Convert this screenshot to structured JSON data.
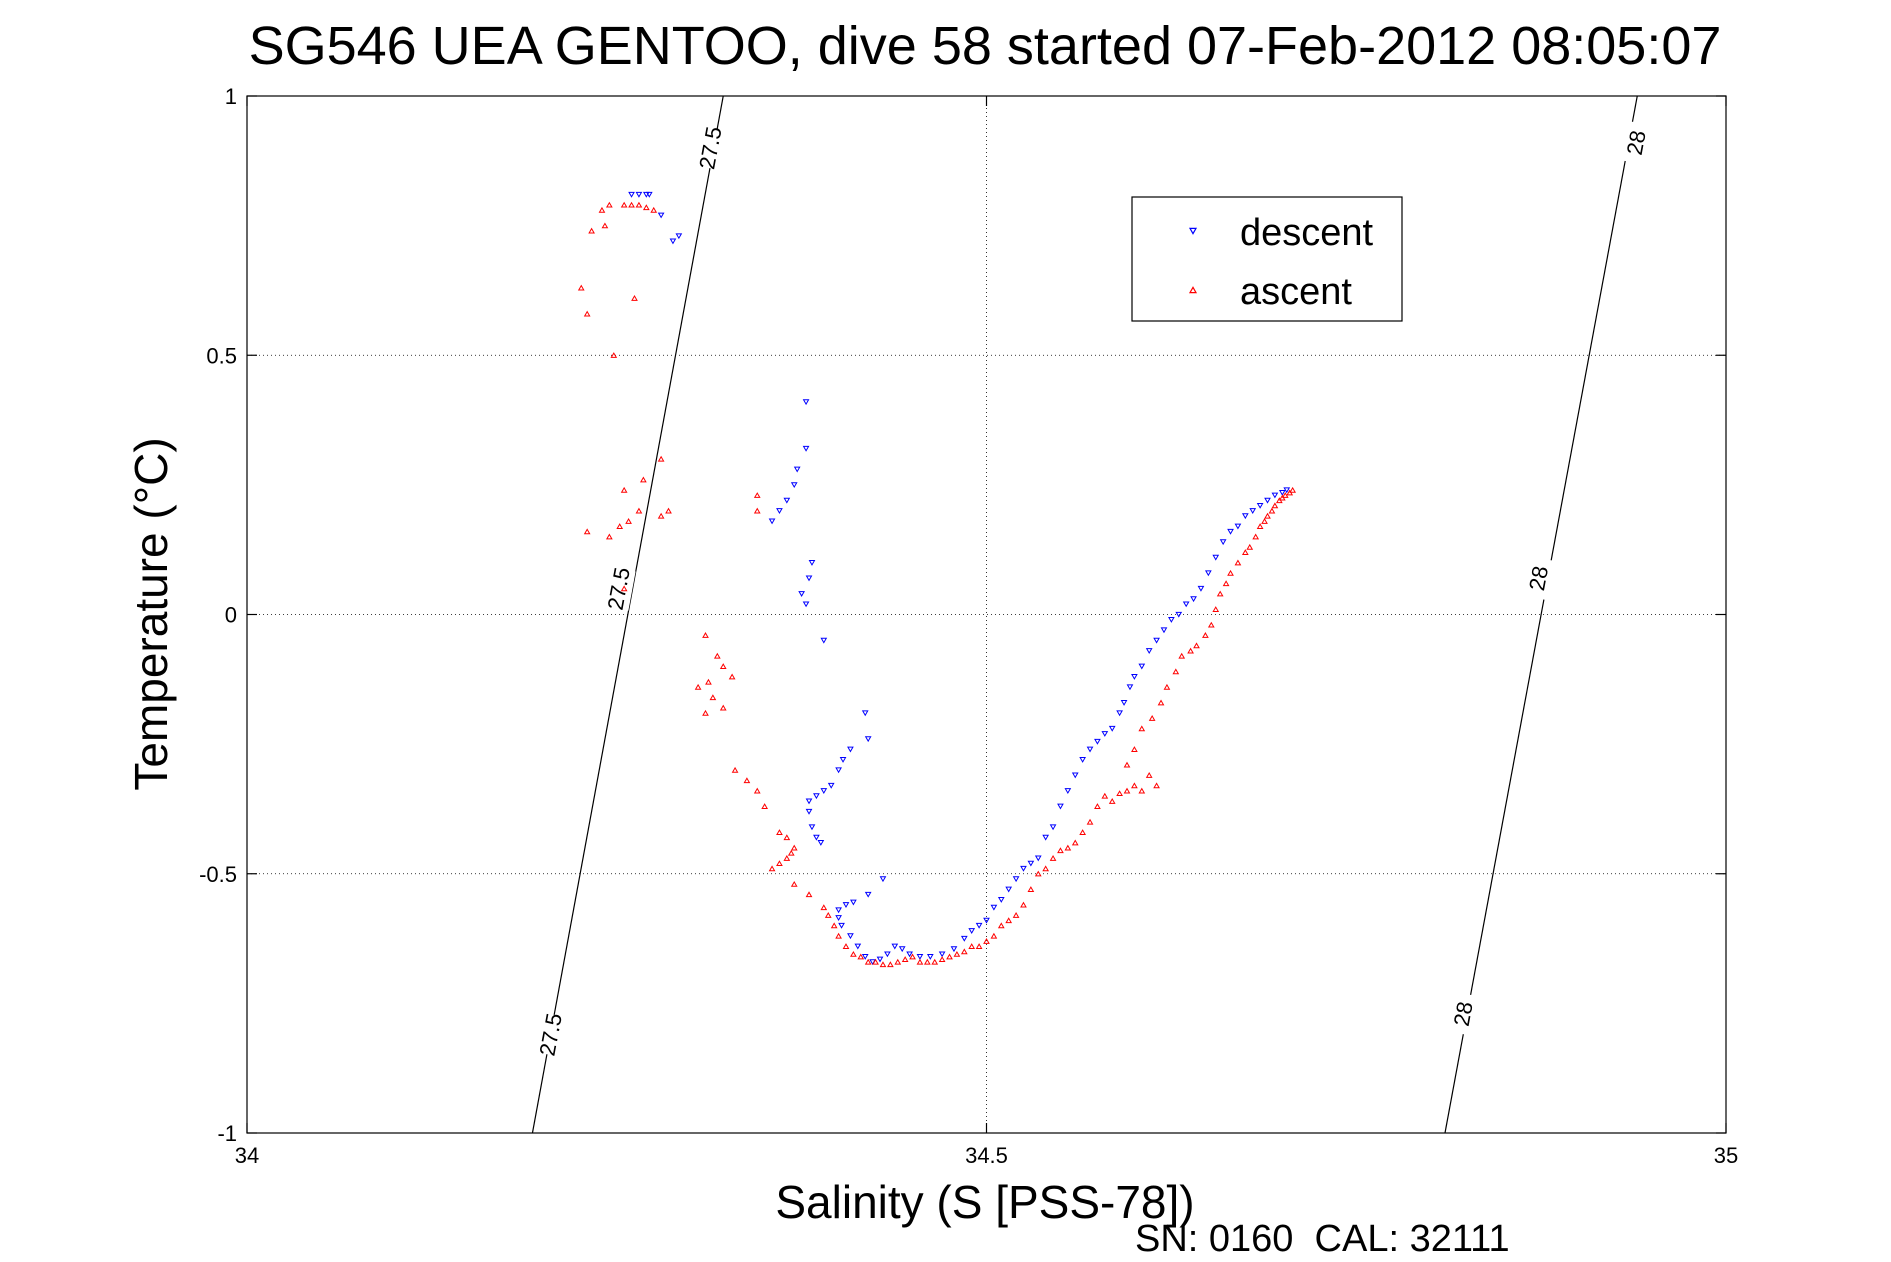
{
  "chart_data": {
    "type": "scatter",
    "title": "SG546 UEA GENTOO, dive 58 started 07-Feb-2012 08:05:07",
    "xlabel": "Salinity (S [PSS-78])",
    "ylabel": "Temperature (°C)",
    "xlim": [
      34,
      35
    ],
    "ylim": [
      -1,
      1
    ],
    "xticks": [
      34,
      34.5,
      35
    ],
    "xtick_labels": [
      "34",
      "34.5",
      "35"
    ],
    "yticks": [
      -1,
      -0.5,
      0,
      0.5,
      1
    ],
    "ytick_labels": [
      "-1",
      "-0.5",
      "0",
      "0.5",
      "1"
    ],
    "grid": true,
    "legend_position": "top-right",
    "footer": "SN: 0160  CAL: 32111",
    "density_contours": [
      {
        "value": "27.5",
        "points": [
          [
            34.193,
            -1
          ],
          [
            34.322,
            1
          ]
        ],
        "labels": [
          [
            34.205,
            -0.81
          ],
          [
            34.251,
            0.05
          ],
          [
            34.313,
            0.9
          ]
        ]
      },
      {
        "value": "28",
        "points": [
          [
            34.81,
            -1
          ],
          [
            34.94,
            1
          ]
        ],
        "labels": [
          [
            34.822,
            -0.77
          ],
          [
            34.873,
            0.07
          ],
          [
            34.939,
            0.91
          ]
        ]
      }
    ],
    "series": [
      {
        "name": "descent",
        "color": "#0000ff",
        "marker": "triangle-down",
        "points": [
          [
            34.26,
            0.81
          ],
          [
            34.265,
            0.81
          ],
          [
            34.27,
            0.81
          ],
          [
            34.272,
            0.81
          ],
          [
            34.28,
            0.77
          ],
          [
            34.288,
            0.72
          ],
          [
            34.292,
            0.73
          ],
          [
            34.378,
            0.41
          ],
          [
            34.378,
            0.32
          ],
          [
            34.372,
            0.28
          ],
          [
            34.37,
            0.25
          ],
          [
            34.365,
            0.22
          ],
          [
            34.36,
            0.2
          ],
          [
            34.355,
            0.18
          ],
          [
            34.382,
            0.1
          ],
          [
            34.38,
            0.07
          ],
          [
            34.375,
            0.04
          ],
          [
            34.378,
            0.02
          ],
          [
            34.39,
            -0.05
          ],
          [
            34.418,
            -0.19
          ],
          [
            34.42,
            -0.24
          ],
          [
            34.408,
            -0.26
          ],
          [
            34.403,
            -0.28
          ],
          [
            34.4,
            -0.3
          ],
          [
            34.395,
            -0.33
          ],
          [
            34.39,
            -0.34
          ],
          [
            34.385,
            -0.35
          ],
          [
            34.38,
            -0.36
          ],
          [
            34.38,
            -0.38
          ],
          [
            34.382,
            -0.41
          ],
          [
            34.385,
            -0.43
          ],
          [
            34.388,
            -0.44
          ],
          [
            34.43,
            -0.51
          ],
          [
            34.42,
            -0.54
          ],
          [
            34.41,
            -0.555
          ],
          [
            34.405,
            -0.56
          ],
          [
            34.4,
            -0.57
          ],
          [
            34.4,
            -0.585
          ],
          [
            34.402,
            -0.6
          ],
          [
            34.408,
            -0.62
          ],
          [
            34.413,
            -0.64
          ],
          [
            34.418,
            -0.66
          ],
          [
            34.423,
            -0.67
          ],
          [
            34.428,
            -0.665
          ],
          [
            34.433,
            -0.655
          ],
          [
            34.438,
            -0.64
          ],
          [
            34.443,
            -0.645
          ],
          [
            34.448,
            -0.655
          ],
          [
            34.455,
            -0.66
          ],
          [
            34.462,
            -0.66
          ],
          [
            34.47,
            -0.655
          ],
          [
            34.478,
            -0.645
          ],
          [
            34.485,
            -0.625
          ],
          [
            34.49,
            -0.61
          ],
          [
            34.495,
            -0.6
          ],
          [
            34.5,
            -0.59
          ],
          [
            34.505,
            -0.565
          ],
          [
            34.51,
            -0.55
          ],
          [
            34.515,
            -0.53
          ],
          [
            34.52,
            -0.51
          ],
          [
            34.525,
            -0.49
          ],
          [
            34.53,
            -0.48
          ],
          [
            34.535,
            -0.47
          ],
          [
            34.54,
            -0.43
          ],
          [
            34.545,
            -0.41
          ],
          [
            34.55,
            -0.37
          ],
          [
            34.555,
            -0.34
          ],
          [
            34.56,
            -0.31
          ],
          [
            34.565,
            -0.28
          ],
          [
            34.57,
            -0.26
          ],
          [
            34.575,
            -0.245
          ],
          [
            34.58,
            -0.23
          ],
          [
            34.585,
            -0.22
          ],
          [
            34.59,
            -0.19
          ],
          [
            34.593,
            -0.17
          ],
          [
            34.597,
            -0.14
          ],
          [
            34.6,
            -0.12
          ],
          [
            34.605,
            -0.1
          ],
          [
            34.61,
            -0.07
          ],
          [
            34.615,
            -0.05
          ],
          [
            34.62,
            -0.03
          ],
          [
            34.625,
            -0.01
          ],
          [
            34.63,
            0.0
          ],
          [
            34.635,
            0.02
          ],
          [
            34.64,
            0.03
          ],
          [
            34.645,
            0.05
          ],
          [
            34.65,
            0.08
          ],
          [
            34.655,
            0.11
          ],
          [
            34.66,
            0.14
          ],
          [
            34.665,
            0.16
          ],
          [
            34.67,
            0.17
          ],
          [
            34.675,
            0.19
          ],
          [
            34.68,
            0.2
          ],
          [
            34.685,
            0.21
          ],
          [
            34.69,
            0.22
          ],
          [
            34.695,
            0.23
          ],
          [
            34.7,
            0.235
          ],
          [
            34.703,
            0.24
          ]
        ]
      },
      {
        "name": "ascent",
        "color": "#ff0000",
        "marker": "triangle-up",
        "points": [
          [
            34.26,
            0.79
          ],
          [
            34.265,
            0.79
          ],
          [
            34.27,
            0.785
          ],
          [
            34.275,
            0.78
          ],
          [
            34.255,
            0.79
          ],
          [
            34.245,
            0.79
          ],
          [
            34.24,
            0.78
          ],
          [
            34.242,
            0.75
          ],
          [
            34.233,
            0.74
          ],
          [
            34.226,
            0.63
          ],
          [
            34.23,
            0.58
          ],
          [
            34.262,
            0.61
          ],
          [
            34.248,
            0.5
          ],
          [
            34.28,
            0.3
          ],
          [
            34.268,
            0.26
          ],
          [
            34.255,
            0.24
          ],
          [
            34.265,
            0.2
          ],
          [
            34.258,
            0.18
          ],
          [
            34.252,
            0.17
          ],
          [
            34.23,
            0.16
          ],
          [
            34.245,
            0.15
          ],
          [
            34.285,
            0.2
          ],
          [
            34.28,
            0.19
          ],
          [
            34.345,
            0.23
          ],
          [
            34.345,
            0.2
          ],
          [
            34.255,
            0.05
          ],
          [
            34.31,
            -0.04
          ],
          [
            34.318,
            -0.08
          ],
          [
            34.322,
            -0.1
          ],
          [
            34.328,
            -0.12
          ],
          [
            34.312,
            -0.13
          ],
          [
            34.305,
            -0.14
          ],
          [
            34.315,
            -0.16
          ],
          [
            34.322,
            -0.18
          ],
          [
            34.31,
            -0.19
          ],
          [
            34.33,
            -0.3
          ],
          [
            34.338,
            -0.32
          ],
          [
            34.345,
            -0.34
          ],
          [
            34.35,
            -0.37
          ],
          [
            34.36,
            -0.42
          ],
          [
            34.365,
            -0.43
          ],
          [
            34.37,
            -0.45
          ],
          [
            34.368,
            -0.46
          ],
          [
            34.365,
            -0.47
          ],
          [
            34.36,
            -0.48
          ],
          [
            34.355,
            -0.49
          ],
          [
            34.37,
            -0.52
          ],
          [
            34.38,
            -0.54
          ],
          [
            34.39,
            -0.565
          ],
          [
            34.393,
            -0.58
          ],
          [
            34.397,
            -0.6
          ],
          [
            34.4,
            -0.62
          ],
          [
            34.405,
            -0.64
          ],
          [
            34.41,
            -0.655
          ],
          [
            34.415,
            -0.66
          ],
          [
            34.42,
            -0.67
          ],
          [
            34.425,
            -0.67
          ],
          [
            34.43,
            -0.675
          ],
          [
            34.435,
            -0.675
          ],
          [
            34.44,
            -0.67
          ],
          [
            34.445,
            -0.665
          ],
          [
            34.45,
            -0.66
          ],
          [
            34.455,
            -0.67
          ],
          [
            34.46,
            -0.67
          ],
          [
            34.465,
            -0.67
          ],
          [
            34.47,
            -0.665
          ],
          [
            34.475,
            -0.66
          ],
          [
            34.48,
            -0.655
          ],
          [
            34.485,
            -0.65
          ],
          [
            34.49,
            -0.64
          ],
          [
            34.495,
            -0.64
          ],
          [
            34.5,
            -0.63
          ],
          [
            34.505,
            -0.62
          ],
          [
            34.51,
            -0.6
          ],
          [
            34.515,
            -0.59
          ],
          [
            34.52,
            -0.58
          ],
          [
            34.525,
            -0.56
          ],
          [
            34.53,
            -0.53
          ],
          [
            34.535,
            -0.5
          ],
          [
            34.54,
            -0.49
          ],
          [
            34.545,
            -0.47
          ],
          [
            34.55,
            -0.455
          ],
          [
            34.555,
            -0.45
          ],
          [
            34.56,
            -0.44
          ],
          [
            34.565,
            -0.42
          ],
          [
            34.57,
            -0.4
          ],
          [
            34.575,
            -0.37
          ],
          [
            34.58,
            -0.35
          ],
          [
            34.585,
            -0.36
          ],
          [
            34.59,
            -0.345
          ],
          [
            34.595,
            -0.34
          ],
          [
            34.6,
            -0.33
          ],
          [
            34.605,
            -0.34
          ],
          [
            34.61,
            -0.31
          ],
          [
            34.615,
            -0.33
          ],
          [
            34.595,
            -0.29
          ],
          [
            34.6,
            -0.26
          ],
          [
            34.605,
            -0.22
          ],
          [
            34.612,
            -0.2
          ],
          [
            34.618,
            -0.17
          ],
          [
            34.622,
            -0.14
          ],
          [
            34.628,
            -0.11
          ],
          [
            34.632,
            -0.08
          ],
          [
            34.638,
            -0.07
          ],
          [
            34.642,
            -0.06
          ],
          [
            34.648,
            -0.04
          ],
          [
            34.652,
            -0.02
          ],
          [
            34.655,
            0.01
          ],
          [
            34.658,
            0.04
          ],
          [
            34.662,
            0.06
          ],
          [
            34.665,
            0.08
          ],
          [
            34.67,
            0.1
          ],
          [
            34.675,
            0.12
          ],
          [
            34.678,
            0.13
          ],
          [
            34.682,
            0.15
          ],
          [
            34.685,
            0.17
          ],
          [
            34.688,
            0.18
          ],
          [
            34.69,
            0.19
          ],
          [
            34.693,
            0.2
          ],
          [
            34.695,
            0.21
          ],
          [
            34.698,
            0.22
          ],
          [
            34.7,
            0.225
          ],
          [
            34.702,
            0.23
          ],
          [
            34.705,
            0.235
          ],
          [
            34.707,
            0.24
          ]
        ]
      }
    ]
  }
}
